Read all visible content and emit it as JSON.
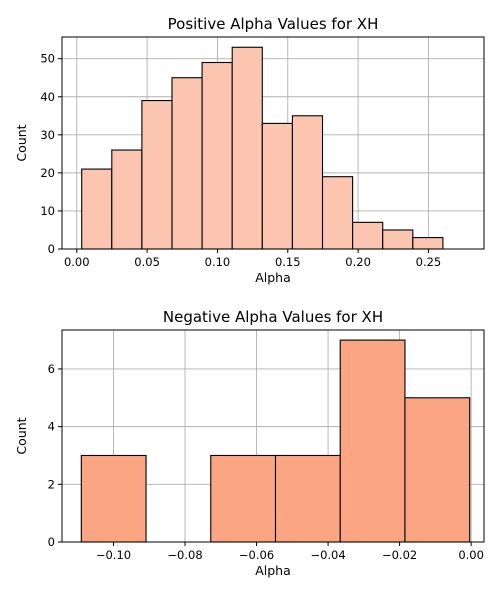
{
  "chart_data": [
    {
      "type": "bar",
      "title": "Positive Alpha Values for XH",
      "xlabel": "Alpha",
      "ylabel": "Count",
      "color": "#fcc5b0",
      "grid": true,
      "xlim": [
        -0.0105,
        0.2895
      ],
      "ylim": [
        0,
        55.7
      ],
      "xticks": [
        0.0,
        0.05,
        0.1,
        0.15,
        0.2,
        0.25
      ],
      "xtick_labels": [
        "0.00",
        "0.05",
        "0.10",
        "0.15",
        "0.20",
        "0.25"
      ],
      "yticks": [
        0,
        10,
        20,
        30,
        40,
        50
      ],
      "ytick_labels": [
        "0",
        "10",
        "20",
        "30",
        "40",
        "50"
      ],
      "bins": [
        {
          "x0": 0.0035,
          "x1": 0.0249,
          "count": 21
        },
        {
          "x0": 0.0249,
          "x1": 0.0463,
          "count": 26
        },
        {
          "x0": 0.0463,
          "x1": 0.0677,
          "count": 39
        },
        {
          "x0": 0.0677,
          "x1": 0.0891,
          "count": 45
        },
        {
          "x0": 0.0891,
          "x1": 0.1105,
          "count": 49
        },
        {
          "x0": 0.1105,
          "x1": 0.1319,
          "count": 53
        },
        {
          "x0": 0.1319,
          "x1": 0.1533,
          "count": 33
        },
        {
          "x0": 0.1533,
          "x1": 0.1747,
          "count": 35
        },
        {
          "x0": 0.1747,
          "x1": 0.1961,
          "count": 19
        },
        {
          "x0": 0.1961,
          "x1": 0.2175,
          "count": 7
        },
        {
          "x0": 0.2175,
          "x1": 0.2389,
          "count": 5
        },
        {
          "x0": 0.2389,
          "x1": 0.2603,
          "count": 3
        }
      ]
    },
    {
      "type": "bar",
      "title": "Negative Alpha Values for XH",
      "xlabel": "Alpha",
      "ylabel": "Count",
      "color": "#fca583",
      "grid": true,
      "xlim": [
        -0.1144,
        0.0036
      ],
      "ylim": [
        0,
        7.35
      ],
      "xticks": [
        -0.1,
        -0.08,
        -0.06,
        -0.04,
        -0.02,
        0.0
      ],
      "xtick_labels": [
        "−0.10",
        "−0.08",
        "−0.06",
        "−0.04",
        "−0.02",
        "0.00"
      ],
      "yticks": [
        0,
        2,
        4,
        6
      ],
      "ytick_labels": [
        "0",
        "2",
        "4",
        "6"
      ],
      "bins": [
        {
          "x0": -0.109,
          "x1": -0.0909,
          "count": 3
        },
        {
          "x0": -0.0909,
          "x1": -0.0728,
          "count": 0
        },
        {
          "x0": -0.0728,
          "x1": -0.0547,
          "count": 3
        },
        {
          "x0": -0.0547,
          "x1": -0.0366,
          "count": 3
        },
        {
          "x0": -0.0366,
          "x1": -0.0185,
          "count": 7
        },
        {
          "x0": -0.0185,
          "x1": -0.0004,
          "count": 5
        }
      ]
    }
  ]
}
